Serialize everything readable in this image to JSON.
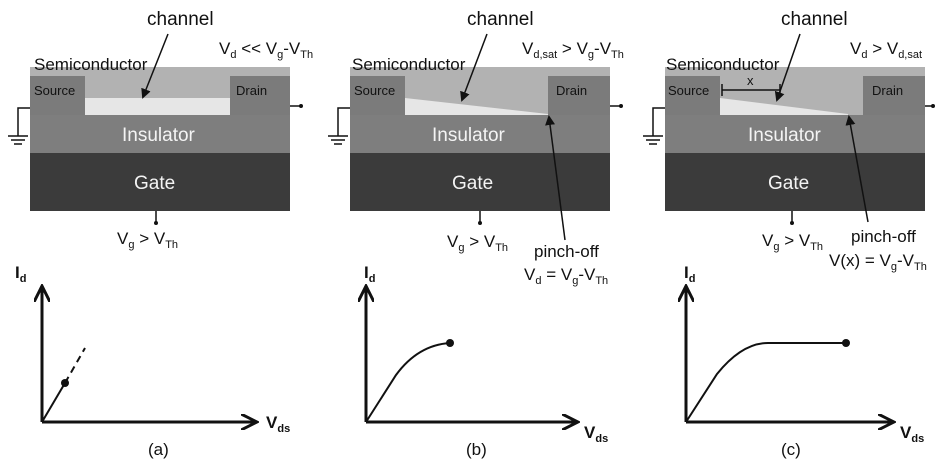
{
  "layer_labels": {
    "semiconductor": "Semiconductor",
    "source": "Source",
    "drain": "Drain",
    "insulator": "Insulator",
    "gate": "Gate",
    "channel": "channel",
    "pinch_off": "pinch-off",
    "x_marker": "x"
  },
  "panels": [
    {
      "caption": "(a)",
      "vd_condition": {
        "base": "V",
        "s1": "d",
        "mid": " << V",
        "s2": "g",
        "mid2": "-V",
        "s3": "Th"
      },
      "vg_condition": {
        "base": "V",
        "s1": "g",
        "mid": " > V",
        "s2": "Th"
      }
    },
    {
      "caption": "(b)",
      "vd_condition": {
        "base": "V",
        "s1": "d,sat",
        "mid": " > V",
        "s2": "g",
        "mid2": "-V",
        "s3": "Th"
      },
      "vg_condition": {
        "base": "V",
        "s1": "g",
        "mid": " > V",
        "s2": "Th"
      },
      "pinch_condition": {
        "base": "V",
        "s1": "d",
        "mid": " = V",
        "s2": "g",
        "mid2": "-V",
        "s3": "Th"
      }
    },
    {
      "caption": "(c)",
      "vd_condition": {
        "base": "V",
        "s1": "d",
        "mid": " > V",
        "s2": "d,sat"
      },
      "vg_condition": {
        "base": "V",
        "s1": "g",
        "mid": " > V",
        "s2": "Th"
      },
      "pinch_condition": {
        "pre": "V(x) = V",
        "s2": "g",
        "mid2": "-V",
        "s3": "Th"
      }
    }
  ],
  "graph_axes": {
    "y_base": "I",
    "y_sub": "d",
    "x_base": "V",
    "x_sub": "ds"
  },
  "colors": {
    "semiconductor": "#b2b2b2",
    "contact": "#7b7b7b",
    "insulator": "#7e7e7e",
    "gate": "#3b3b3b",
    "channel_fill": "#e6e6e6",
    "line": "#111111"
  }
}
